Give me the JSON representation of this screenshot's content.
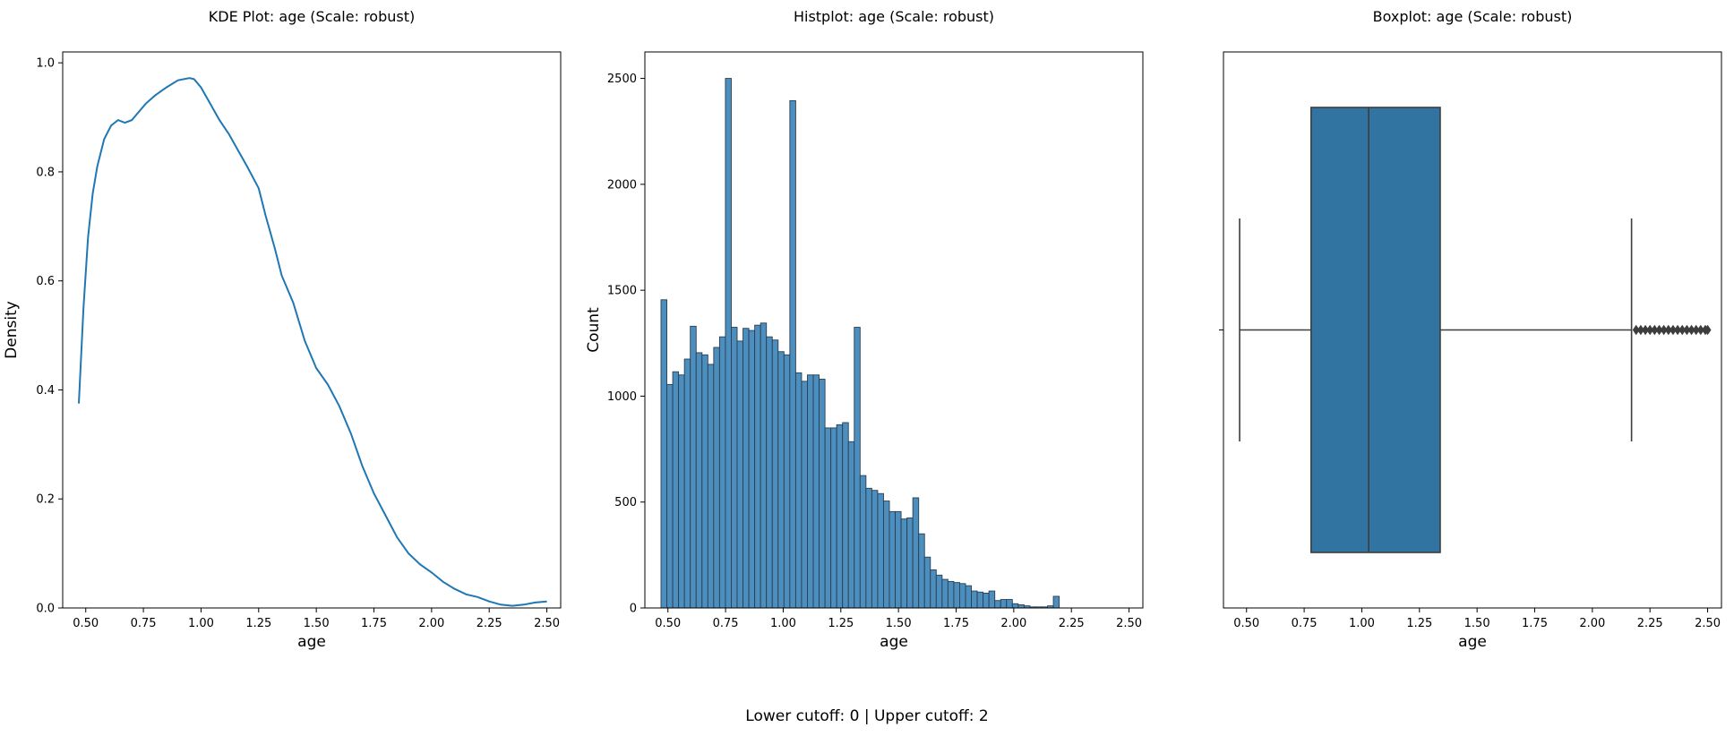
{
  "footer": "Lower cutoff: 0 | Upper cutoff: 2",
  "colors": {
    "kde_line": "#1f77b4",
    "hist_fill": "#4c8ebd",
    "hist_edge": "#2a3f52",
    "box_fill": "#3274a1",
    "box_edge": "#3d3d3d"
  },
  "chart_data": [
    {
      "type": "line",
      "title": "KDE Plot: age (Scale: robust)",
      "xlabel": "age",
      "ylabel": "Density",
      "xlim": [
        0.4,
        2.56
      ],
      "ylim": [
        0,
        1.02
      ],
      "xticks": [
        "0.50",
        "0.75",
        "1.00",
        "1.25",
        "1.50",
        "1.75",
        "2.00",
        "2.25",
        "2.50"
      ],
      "xtick_values": [
        0.5,
        0.75,
        1.0,
        1.25,
        1.5,
        1.75,
        2.0,
        2.25,
        2.5
      ],
      "yticks": [
        "0.0",
        "0.2",
        "0.4",
        "0.6",
        "0.8",
        "1.0"
      ],
      "ytick_values": [
        0,
        0.2,
        0.4,
        0.6,
        0.8,
        1.0
      ],
      "x": [
        0.47,
        0.49,
        0.51,
        0.53,
        0.55,
        0.58,
        0.61,
        0.64,
        0.67,
        0.7,
        0.73,
        0.76,
        0.8,
        0.85,
        0.9,
        0.95,
        0.97,
        1.0,
        1.04,
        1.08,
        1.12,
        1.16,
        1.2,
        1.25,
        1.28,
        1.32,
        1.35,
        1.4,
        1.45,
        1.5,
        1.55,
        1.6,
        1.65,
        1.7,
        1.75,
        1.8,
        1.85,
        1.9,
        1.95,
        2.0,
        2.05,
        2.1,
        2.15,
        2.2,
        2.25,
        2.3,
        2.35,
        2.4,
        2.45,
        2.5
      ],
      "y": [
        0.375,
        0.55,
        0.68,
        0.76,
        0.81,
        0.86,
        0.885,
        0.895,
        0.89,
        0.895,
        0.91,
        0.925,
        0.94,
        0.955,
        0.968,
        0.972,
        0.97,
        0.955,
        0.925,
        0.895,
        0.87,
        0.84,
        0.81,
        0.77,
        0.72,
        0.66,
        0.61,
        0.56,
        0.49,
        0.44,
        0.41,
        0.37,
        0.32,
        0.26,
        0.21,
        0.17,
        0.13,
        0.1,
        0.08,
        0.065,
        0.048,
        0.035,
        0.025,
        0.02,
        0.012,
        0.006,
        0.004,
        0.006,
        0.01,
        0.012
      ]
    },
    {
      "type": "bar",
      "title": "Histplot: age (Scale: robust)",
      "xlabel": "age",
      "ylabel": "Count",
      "xlim": [
        0.4,
        2.56
      ],
      "ylim": [
        0,
        2625
      ],
      "xticks": [
        "0.50",
        "0.75",
        "1.00",
        "1.25",
        "1.50",
        "1.75",
        "2.00",
        "2.25",
        "2.50"
      ],
      "xtick_values": [
        0.5,
        0.75,
        1.0,
        1.25,
        1.5,
        1.75,
        2.0,
        2.25,
        2.5
      ],
      "yticks": [
        "0",
        "500",
        "1000",
        "1500",
        "2000",
        "2500"
      ],
      "ytick_values": [
        0,
        500,
        1000,
        1500,
        2000,
        2500
      ],
      "bin_start": 0.47,
      "bin_width": 0.0254,
      "values": [
        1455,
        1055,
        1115,
        1100,
        1175,
        1330,
        1205,
        1195,
        1150,
        1230,
        1280,
        2500,
        1325,
        1260,
        1320,
        1310,
        1335,
        1345,
        1280,
        1265,
        1210,
        1195,
        2395,
        1110,
        1070,
        1100,
        1100,
        1080,
        850,
        850,
        865,
        875,
        785,
        1325,
        625,
        565,
        555,
        540,
        505,
        455,
        455,
        420,
        425,
        520,
        350,
        240,
        180,
        155,
        135,
        125,
        120,
        115,
        105,
        80,
        75,
        70,
        80,
        35,
        40,
        40,
        20,
        15,
        10,
        5,
        5,
        5,
        10,
        55
      ]
    },
    {
      "type": "box",
      "title": "Boxplot: age (Scale: robust)",
      "xlabel": "age",
      "xlim": [
        0.4,
        2.56
      ],
      "xticks": [
        "0.50",
        "0.75",
        "1.00",
        "1.25",
        "1.50",
        "1.75",
        "2.00",
        "2.25",
        "2.50"
      ],
      "xtick_values": [
        0.5,
        0.75,
        1.0,
        1.25,
        1.5,
        1.75,
        2.0,
        2.25,
        2.5
      ],
      "whisker_low": 0.47,
      "q1": 0.78,
      "median": 1.03,
      "q3": 1.34,
      "whisker_high": 2.17,
      "outliers": [
        2.19,
        2.21,
        2.23,
        2.25,
        2.27,
        2.29,
        2.31,
        2.33,
        2.35,
        2.37,
        2.39,
        2.41,
        2.43,
        2.45,
        2.47,
        2.49,
        2.5
      ]
    }
  ]
}
